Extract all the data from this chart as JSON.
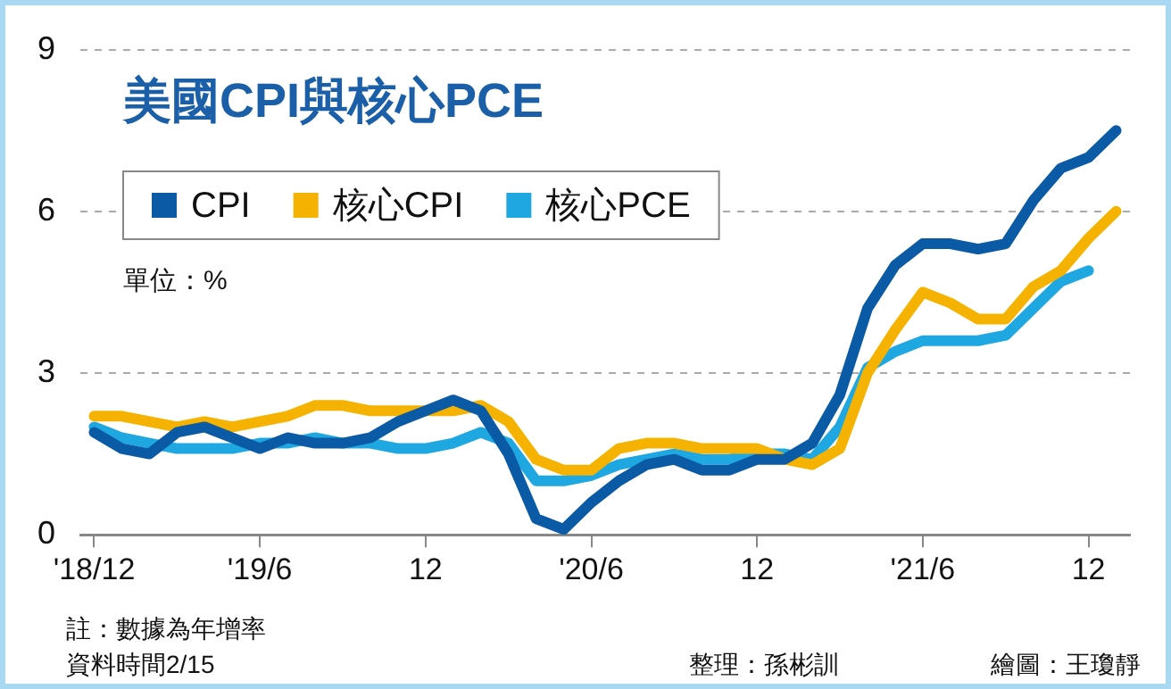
{
  "chart_data": {
    "type": "line",
    "title": "美國CPI與核心PCE",
    "categories": [
      "'18/12",
      null,
      null,
      null,
      null,
      null,
      "'19/6",
      null,
      null,
      null,
      null,
      null,
      "12",
      null,
      null,
      null,
      null,
      null,
      "'20/6",
      null,
      null,
      null,
      null,
      null,
      "12",
      null,
      null,
      null,
      null,
      null,
      "'21/6",
      null,
      null,
      null,
      null,
      null,
      "12",
      null
    ],
    "series": [
      {
        "name": "CPI",
        "color": "#0b5aa6",
        "values": [
          1.9,
          1.6,
          1.5,
          1.9,
          2.0,
          1.8,
          1.6,
          1.8,
          1.7,
          1.7,
          1.8,
          2.1,
          2.3,
          2.5,
          2.3,
          1.5,
          0.3,
          0.1,
          0.6,
          1.0,
          1.3,
          1.4,
          1.2,
          1.2,
          1.4,
          1.4,
          1.7,
          2.6,
          4.2,
          5.0,
          5.4,
          5.4,
          5.3,
          5.4,
          6.2,
          6.8,
          7.0,
          7.5
        ]
      },
      {
        "name": "核心CPI",
        "color": "#f5b300",
        "values": [
          2.2,
          2.2,
          2.1,
          2.0,
          2.1,
          2.0,
          2.1,
          2.2,
          2.4,
          2.4,
          2.3,
          2.3,
          2.3,
          2.3,
          2.4,
          2.1,
          1.4,
          1.2,
          1.2,
          1.6,
          1.7,
          1.7,
          1.6,
          1.6,
          1.6,
          1.4,
          1.3,
          1.6,
          3.0,
          3.8,
          4.5,
          4.3,
          4.0,
          4.0,
          4.6,
          4.9,
          5.5,
          6.0
        ]
      },
      {
        "name": "核心PCE",
        "color": "#1ea7e1",
        "values": [
          2.0,
          1.8,
          1.7,
          1.6,
          1.6,
          1.6,
          1.7,
          1.7,
          1.8,
          1.7,
          1.7,
          1.6,
          1.6,
          1.7,
          1.9,
          1.7,
          1.0,
          1.0,
          1.1,
          1.3,
          1.4,
          1.5,
          1.4,
          1.4,
          1.5,
          1.5,
          1.4,
          2.0,
          3.1,
          3.4,
          3.6,
          3.6,
          3.6,
          3.7,
          4.2,
          4.7,
          4.9,
          null
        ]
      }
    ],
    "ylim": [
      0,
      9
    ],
    "yticks": [
      0,
      3,
      6,
      9
    ],
    "grid": "y",
    "legend": "top left",
    "marker": "none",
    "line_style": "solid",
    "annotations": [
      "單位：%",
      "註：數據為年增率",
      "資料時間2/15",
      "整理：孫彬訓",
      "繪圖：王瓊靜"
    ]
  }
}
